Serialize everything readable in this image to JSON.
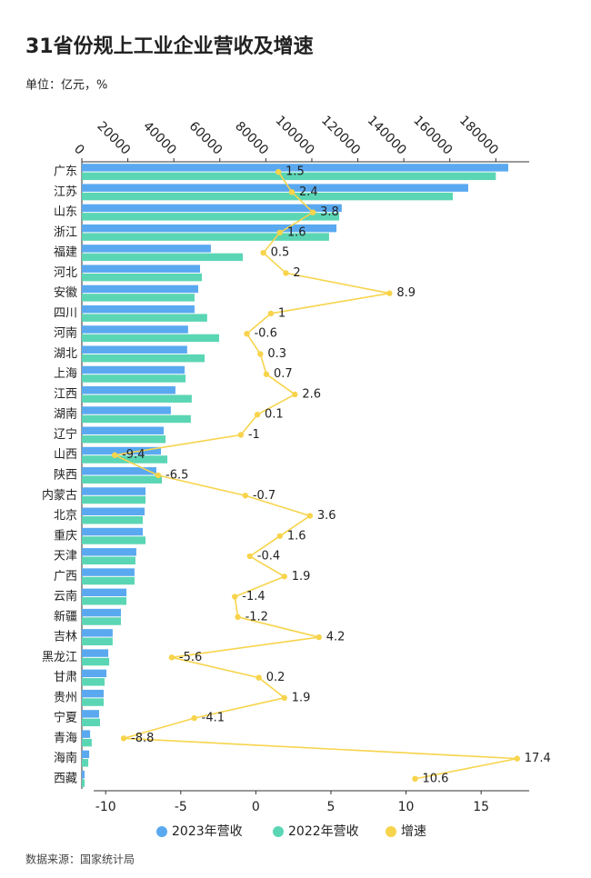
{
  "chart_data": {
    "type": "bar",
    "orientation": "horizontal",
    "title": "31省份规上工业企业营收及增速",
    "subtitle": "单位：亿元，%",
    "source": "数据来源：国家统计局",
    "categories": [
      "广东",
      "江苏",
      "山东",
      "浙江",
      "福建",
      "河北",
      "安徽",
      "四川",
      "河南",
      "湖北",
      "上海",
      "江西",
      "湖南",
      "辽宁",
      "山西",
      "陕西",
      "内蒙古",
      "北京",
      "重庆",
      "天津",
      "广西",
      "云南",
      "新疆",
      "吉林",
      "黑龙江",
      "甘肃",
      "贵州",
      "宁夏",
      "青海",
      "海南",
      "西藏"
    ],
    "series": [
      {
        "name": "2023年营收",
        "color": "#5aa9f0",
        "values": [
          185400,
          168000,
          113000,
          110700,
          56100,
          51400,
          50600,
          49000,
          46200,
          45800,
          44700,
          40700,
          38700,
          35600,
          34400,
          32400,
          27700,
          27300,
          26500,
          23700,
          22900,
          19400,
          17000,
          13400,
          11500,
          10700,
          9500,
          7500,
          3600,
          3200,
          1200
        ]
      },
      {
        "name": "2022年营收",
        "color": "#5bd6b4",
        "values": [
          180000,
          161300,
          111900,
          107500,
          70000,
          52200,
          49000,
          54500,
          59700,
          53400,
          45100,
          47800,
          47400,
          36400,
          37200,
          34800,
          27700,
          26500,
          27700,
          23300,
          22900,
          19400,
          17000,
          13400,
          11900,
          9900,
          9500,
          7900,
          4300,
          2800,
          1200
        ]
      },
      {
        "name": "增速",
        "color": "#f7d44c",
        "type": "line",
        "axis": "x2",
        "values": [
          1.5,
          2.4,
          3.8,
          1.6,
          0.5,
          2,
          8.9,
          1,
          -0.6,
          0.3,
          0.7,
          2.6,
          0.1,
          -1,
          -9.4,
          -6.5,
          -0.7,
          3.6,
          1.6,
          -0.4,
          1.9,
          -1.4,
          -1.2,
          4.2,
          -5.6,
          0.2,
          1.9,
          -4.1,
          -8.8,
          17.4,
          10.6
        ]
      }
    ],
    "xlim": [
      0,
      194500
    ],
    "xticks": [
      0,
      20000,
      40000,
      60000,
      80000,
      100000,
      120000,
      140000,
      160000,
      180000
    ],
    "x2lim": [
      -10.8,
      18.2
    ],
    "x2ticks": [
      -10,
      -5,
      0,
      5,
      10,
      15
    ],
    "grid": false,
    "legend": "bottom"
  }
}
